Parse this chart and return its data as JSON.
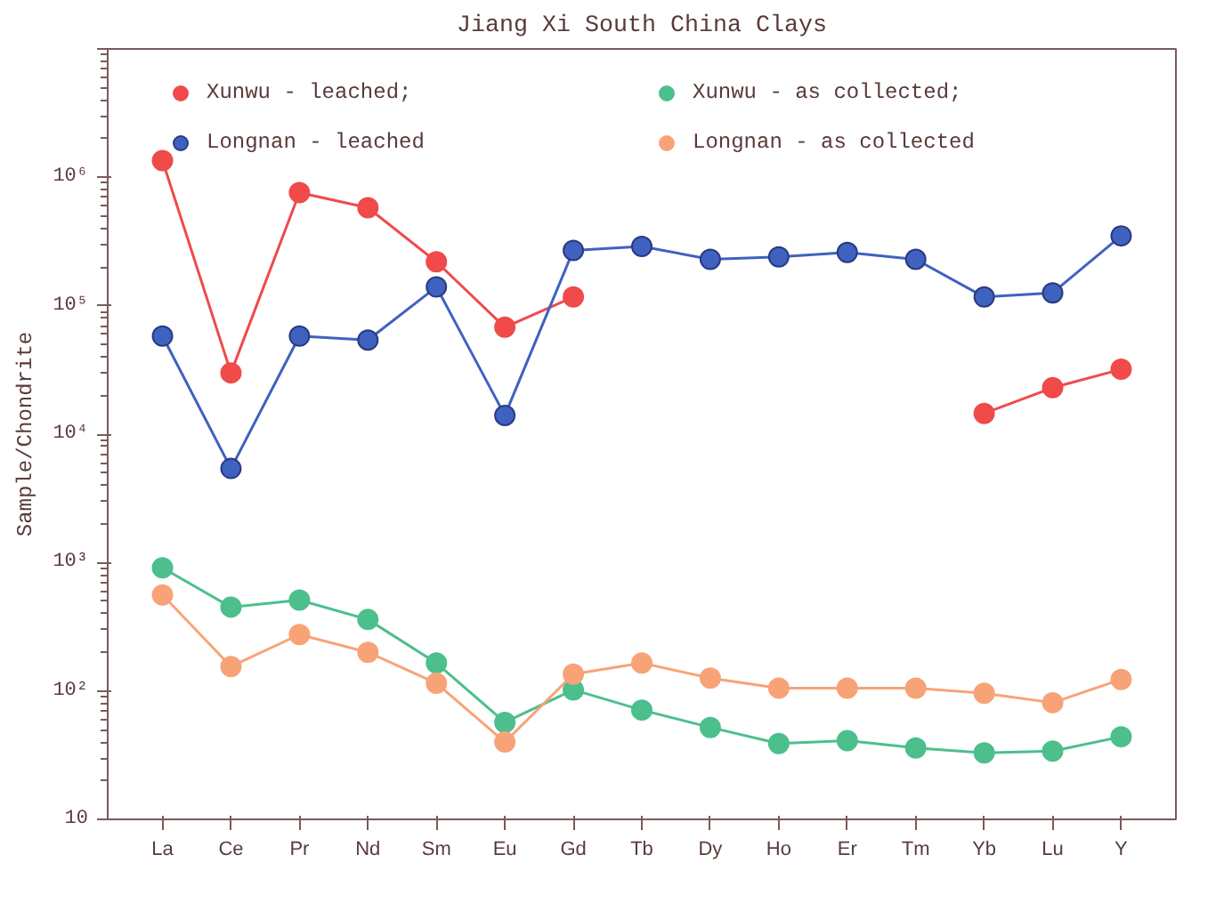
{
  "chart_data": {
    "type": "line",
    "title": "Jiang Xi South China Clays",
    "ylabel": "Sample/Chondrite",
    "categories": [
      "La",
      "Ce",
      "Pr",
      "Nd",
      "Sm",
      "Eu",
      "Gd",
      "Tb",
      "Dy",
      "Ho",
      "Er",
      "Tm",
      "Yb",
      "Lu",
      "Y"
    ],
    "series": [
      {
        "name": "Xunwu - leached;",
        "color": "#f04a4a",
        "values": [
          1350000,
          30000,
          760000,
          580000,
          220000,
          68000,
          117000,
          null,
          null,
          null,
          null,
          null,
          14500,
          23000,
          32000
        ]
      },
      {
        "name": "Longnan - leached",
        "color": "#3f62c0",
        "values": [
          58000,
          5400,
          58000,
          54000,
          140000,
          14000,
          270000,
          290000,
          230000,
          240000,
          260000,
          230000,
          117000,
          126000,
          350000
        ]
      },
      {
        "name": "Xunwu - as collected;",
        "color": "#4cbf8c",
        "values": [
          910,
          450,
          510,
          360,
          165,
          57,
          102,
          71,
          52,
          39,
          41,
          36,
          33,
          34,
          44
        ]
      },
      {
        "name": "Longnan - as collected",
        "color": "#f8a377",
        "values": [
          560,
          155,
          275,
          200,
          115,
          40,
          135,
          165,
          126,
          105,
          105,
          105,
          96,
          81,
          123
        ]
      }
    ],
    "log": true,
    "ylim": [
      10,
      10000000
    ],
    "yticks": [
      {
        "value": 10,
        "label": "10"
      },
      {
        "value": 100,
        "label": "10²"
      },
      {
        "value": 1000,
        "label": "10³"
      },
      {
        "value": 10000,
        "label": "10⁴"
      },
      {
        "value": 100000,
        "label": "10⁵"
      },
      {
        "value": 1000000,
        "label": "10⁶"
      },
      {
        "value": 10000000,
        "label": null
      }
    ],
    "grid": false,
    "legend": "top",
    "marker": "circle",
    "line_style": "solid"
  }
}
